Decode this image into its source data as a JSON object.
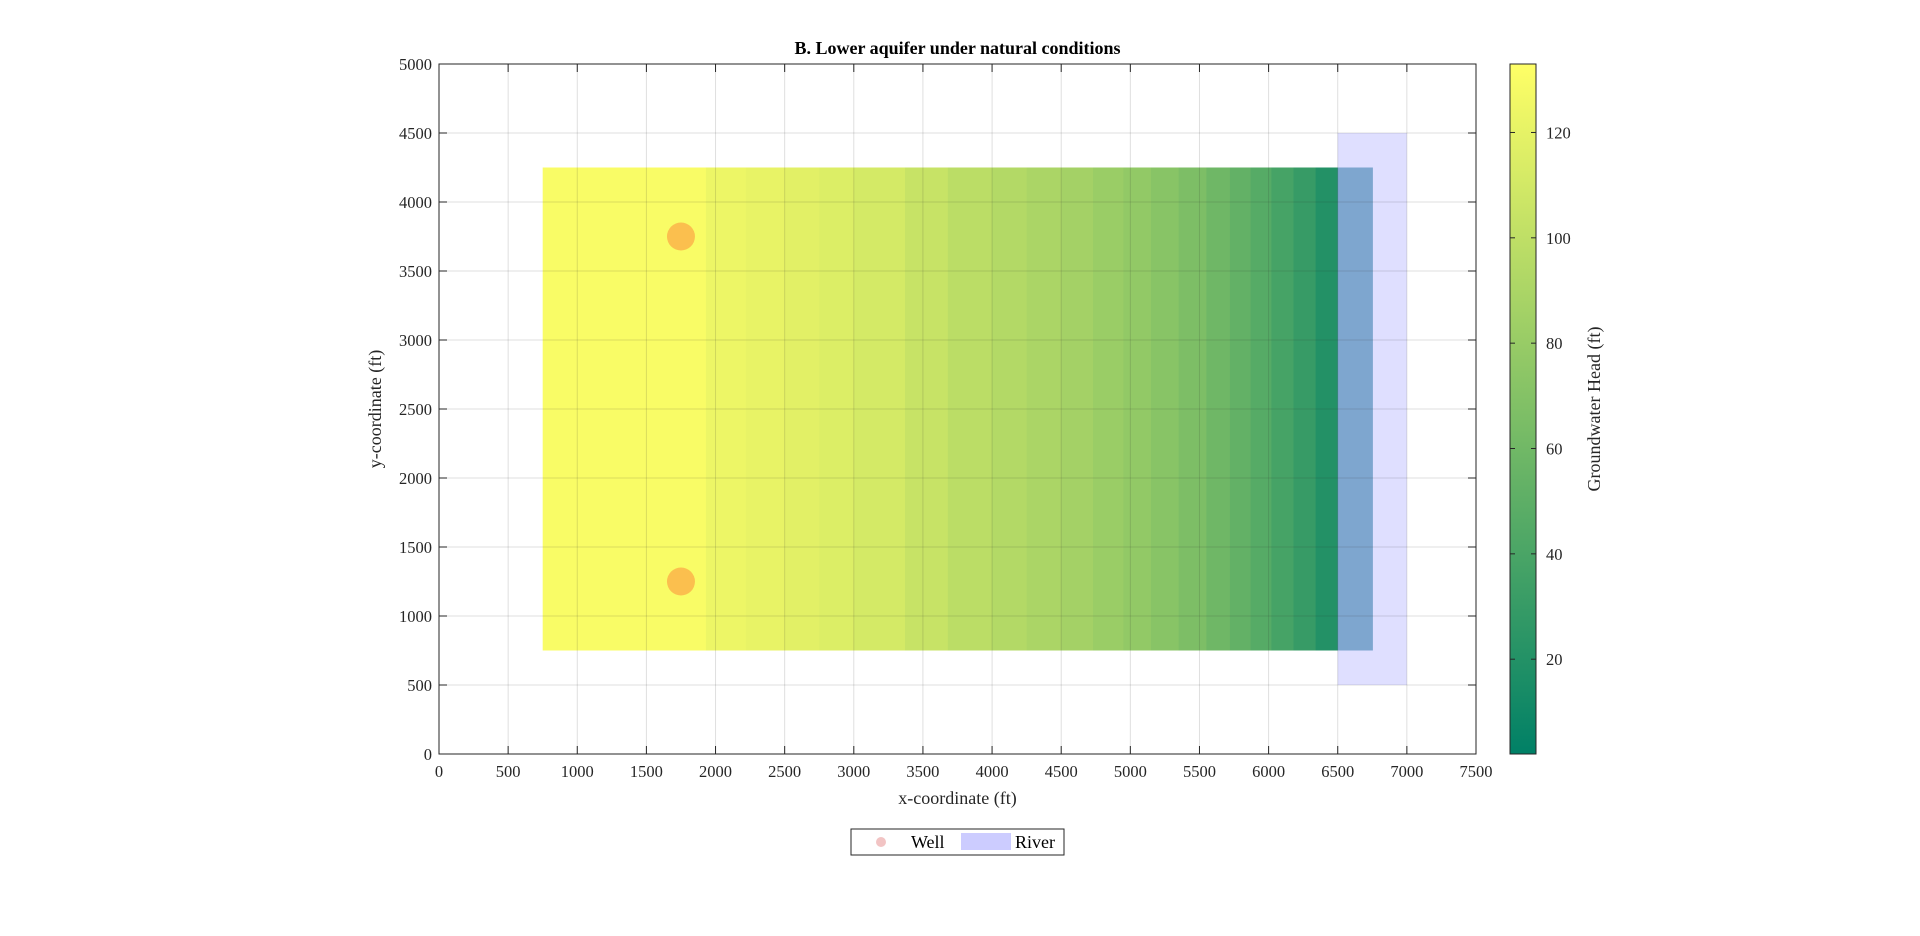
{
  "chart_data": {
    "type": "heatmap",
    "title": "B. Lower aquifer under natural conditions",
    "xlabel": "x-coordinate (ft)",
    "ylabel": "y-coordinate (ft)",
    "xlim": [
      0,
      7500
    ],
    "ylim": [
      0,
      5000
    ],
    "xticks": [
      0,
      500,
      1000,
      1500,
      2000,
      2500,
      3000,
      3500,
      4000,
      4500,
      5000,
      5500,
      6000,
      6500,
      7000,
      7500
    ],
    "yticks": [
      0,
      500,
      1000,
      1500,
      2000,
      2500,
      3000,
      3500,
      4000,
      4500,
      5000
    ],
    "grid": true,
    "model_y_range": [
      750,
      4250
    ],
    "head_columns": [
      {
        "x0": 750,
        "x1": 1930,
        "head": 130
      },
      {
        "x0": 1930,
        "x1": 2220,
        "head": 124
      },
      {
        "x0": 2220,
        "x1": 2500,
        "head": 121
      },
      {
        "x0": 2500,
        "x1": 2750,
        "head": 118
      },
      {
        "x0": 2750,
        "x1": 3000,
        "head": 115
      },
      {
        "x0": 3000,
        "x1": 3370,
        "head": 111
      },
      {
        "x0": 3370,
        "x1": 3680,
        "head": 104
      },
      {
        "x0": 3680,
        "x1": 4000,
        "head": 98
      },
      {
        "x0": 4000,
        "x1": 4250,
        "head": 94
      },
      {
        "x0": 4250,
        "x1": 4500,
        "head": 90
      },
      {
        "x0": 4500,
        "x1": 4730,
        "head": 86
      },
      {
        "x0": 4730,
        "x1": 4950,
        "head": 81
      },
      {
        "x0": 4950,
        "x1": 5150,
        "head": 77
      },
      {
        "x0": 5150,
        "x1": 5350,
        "head": 72
      },
      {
        "x0": 5350,
        "x1": 5550,
        "head": 66
      },
      {
        "x0": 5550,
        "x1": 5720,
        "head": 59
      },
      {
        "x0": 5720,
        "x1": 5870,
        "head": 53
      },
      {
        "x0": 5870,
        "x1": 6020,
        "head": 46
      },
      {
        "x0": 6020,
        "x1": 6180,
        "head": 38
      },
      {
        "x0": 6180,
        "x1": 6340,
        "head": 30
      },
      {
        "x0": 6340,
        "x1": 6500,
        "head": 20
      },
      {
        "x0": 6500,
        "x1": 6750,
        "head": 0
      }
    ],
    "wells": [
      {
        "x": 1750,
        "y": 3750
      },
      {
        "x": 1750,
        "y": 1250
      }
    ],
    "river": {
      "x0": 6500,
      "x1": 7000,
      "y0": 500,
      "y1": 4500
    },
    "colorbar": {
      "label": "Groundwater Head (ft)",
      "range": [
        2,
        133
      ],
      "ticks": [
        20,
        40,
        60,
        80,
        100,
        120
      ],
      "colormap": "summer"
    },
    "legend": {
      "placement": "bottom-center",
      "entries": [
        "Well",
        "River"
      ]
    },
    "colors": {
      "well_fill": "#fbb44a",
      "well_legend": "#f2c4c4",
      "river_fill": "#ccccff",
      "river_edge_column": "#006b80",
      "colormap_low": "#008066",
      "colormap_high": "#ffff66"
    }
  }
}
